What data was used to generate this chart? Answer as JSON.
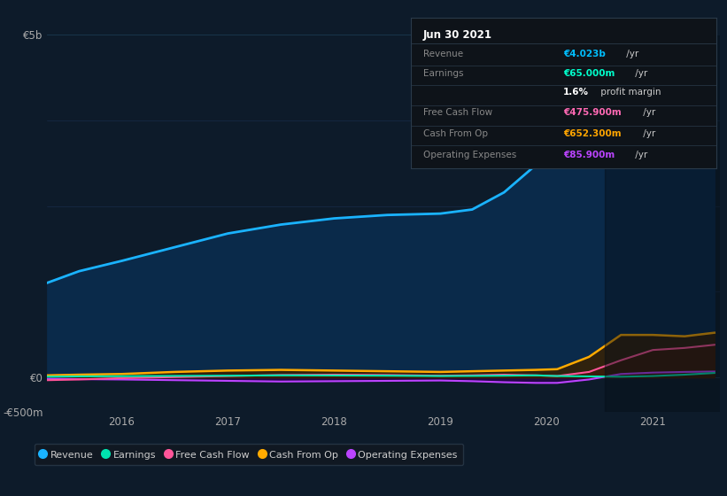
{
  "background_color": "#0d1b2a",
  "plot_bg_color": "#0d1b2a",
  "title_box": {
    "date": "Jun 30 2021",
    "rows": [
      {
        "label": "Revenue",
        "value": "€4.023b",
        "unit": " /yr",
        "value_color": "#00bfff",
        "label_color": "#888888"
      },
      {
        "label": "Earnings",
        "value": "€65.000m",
        "unit": " /yr",
        "value_color": "#00ffcc",
        "label_color": "#888888"
      },
      {
        "label": "",
        "value": "1.6%",
        "unit": " profit margin",
        "value_color": "#ffffff",
        "label_color": "#888888"
      },
      {
        "label": "Free Cash Flow",
        "value": "€475.900m",
        "unit": " /yr",
        "value_color": "#ff69b4",
        "label_color": "#888888"
      },
      {
        "label": "Cash From Op",
        "value": "€652.300m",
        "unit": " /yr",
        "value_color": "#ffa500",
        "label_color": "#888888"
      },
      {
        "label": "Operating Expenses",
        "value": "€85.900m",
        "unit": " /yr",
        "value_color": "#bb44ff",
        "label_color": "#888888"
      }
    ]
  },
  "x": [
    2015.3,
    2015.6,
    2016.0,
    2016.5,
    2017.0,
    2017.5,
    2018.0,
    2018.5,
    2019.0,
    2019.3,
    2019.6,
    2019.9,
    2020.1,
    2020.4,
    2020.7,
    2021.0,
    2021.3,
    2021.58
  ],
  "revenue": [
    1380,
    1550,
    1700,
    1900,
    2100,
    2230,
    2320,
    2370,
    2390,
    2450,
    2700,
    3100,
    3700,
    3850,
    3500,
    3600,
    3750,
    4023
  ],
  "earnings": [
    10,
    15,
    18,
    22,
    25,
    30,
    28,
    25,
    20,
    22,
    25,
    30,
    20,
    15,
    10,
    20,
    40,
    65
  ],
  "free_cash_flow": [
    -40,
    -30,
    -10,
    5,
    20,
    35,
    40,
    35,
    25,
    30,
    40,
    30,
    20,
    80,
    250,
    400,
    430,
    476
  ],
  "cash_from_op": [
    30,
    40,
    50,
    80,
    100,
    110,
    100,
    90,
    80,
    90,
    100,
    110,
    120,
    300,
    620,
    620,
    600,
    652
  ],
  "operating_exp": [
    -20,
    -25,
    -30,
    -40,
    -50,
    -60,
    -55,
    -50,
    -45,
    -55,
    -70,
    -80,
    -80,
    -30,
    50,
    70,
    80,
    86
  ],
  "ylim": [
    -500,
    5000
  ],
  "yticks": [
    -500,
    0,
    5000
  ],
  "ytick_labels": [
    "-€500m",
    "€0",
    "€5b"
  ],
  "xticks": [
    2016,
    2017,
    2018,
    2019,
    2020,
    2021
  ],
  "revenue_color": "#1ab3ff",
  "earnings_color": "#00e5b0",
  "fcf_color": "#ff5599",
  "cfo_color": "#ffaa00",
  "opex_color": "#bb44ff",
  "legend_labels": [
    "Revenue",
    "Earnings",
    "Free Cash Flow",
    "Cash From Op",
    "Operating Expenses"
  ],
  "legend_colors": [
    "#1ab3ff",
    "#00e5b0",
    "#ff5599",
    "#ffaa00",
    "#bb44ff"
  ],
  "dark_overlay_start": 2020.55
}
